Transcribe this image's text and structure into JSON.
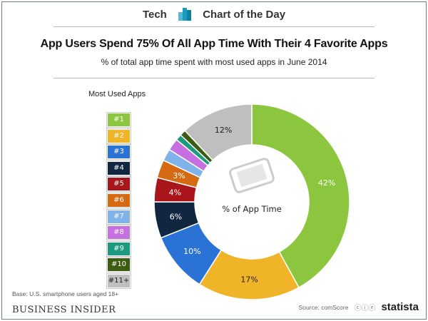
{
  "header": {
    "left": "Tech",
    "right": "Chart of the Day"
  },
  "footer": {
    "base": "Base: U.S. smartphone users aged 18+",
    "publisher": "BUSINESS INSIDER",
    "source": "Source: comScore",
    "brand": "statista"
  },
  "chart_data": {
    "type": "pie",
    "title": "App Users Spend 75% Of All App Time With Their 4 Favorite Apps",
    "subtitle": "% of total app time spent with most used apps in June 2014",
    "legend_title": "Most Used Apps",
    "center_label": "% of App Time",
    "categories": [
      "#1",
      "#2",
      "#3",
      "#4",
      "#5",
      "#6",
      "#7",
      "#8",
      "#9",
      "#10",
      "#11+"
    ],
    "values": [
      42,
      17,
      10,
      6,
      4,
      3,
      2,
      2,
      1,
      1,
      12
    ],
    "labels": [
      "42%",
      "17%",
      "10%",
      "6%",
      "4%",
      "3%",
      "",
      "",
      "",
      "",
      "12%"
    ],
    "colors": [
      "#8cc63f",
      "#f0b429",
      "#2a72d4",
      "#10273f",
      "#a8161b",
      "#d66a12",
      "#80b3ea",
      "#c56fe0",
      "#1b9a7e",
      "#3c5c12",
      "#bfbfbf"
    ],
    "legend_placement": "left"
  }
}
